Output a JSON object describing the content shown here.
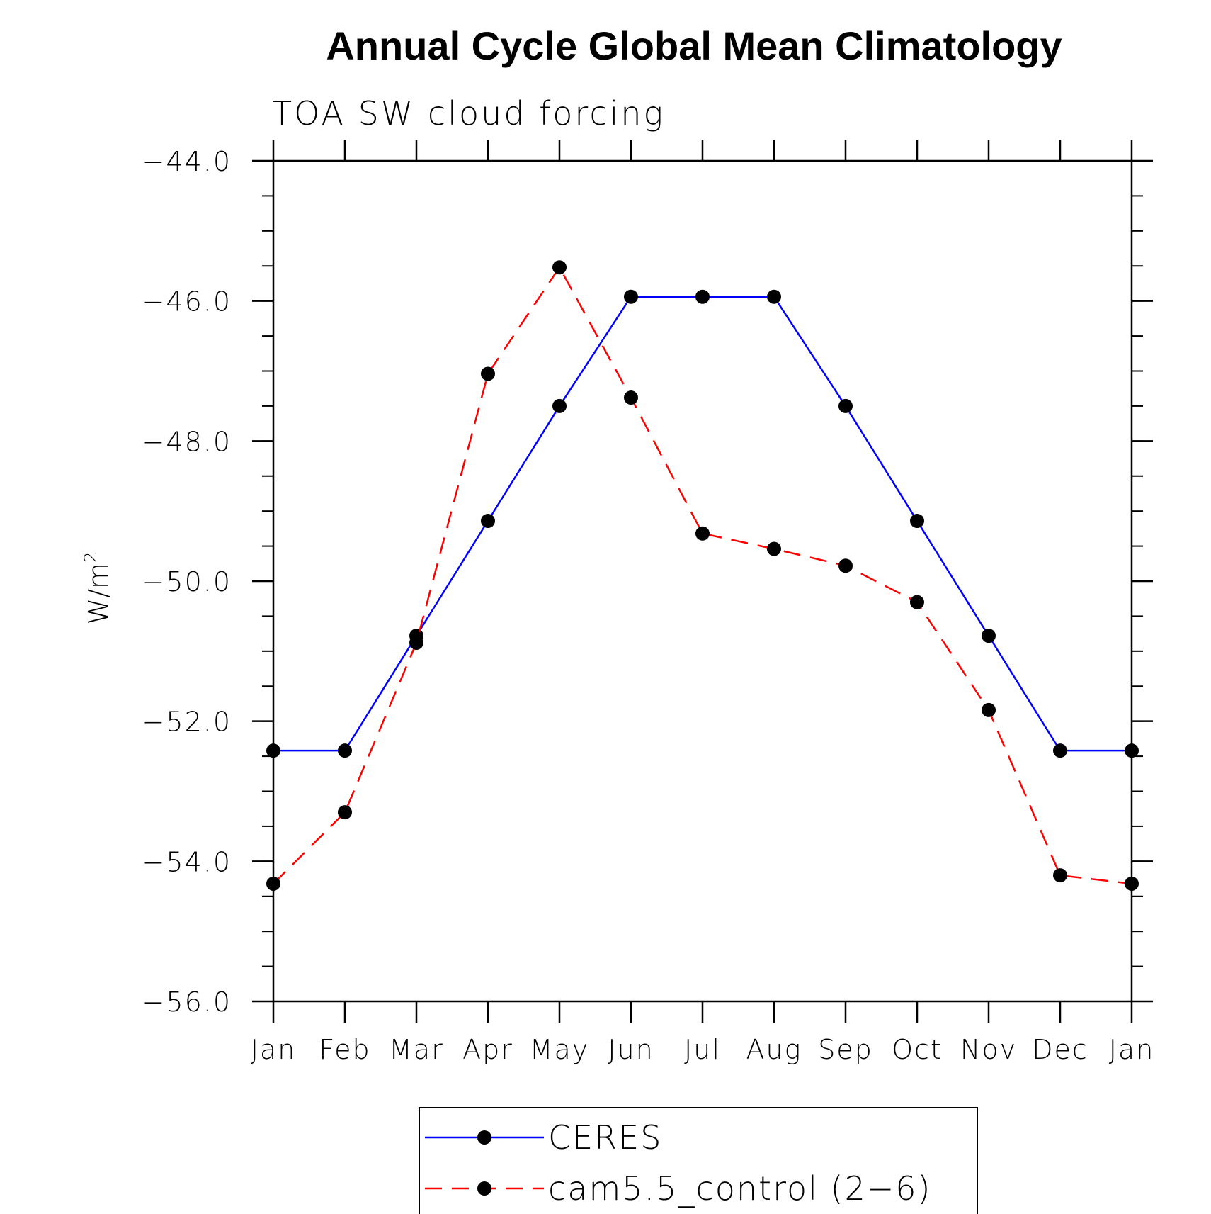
{
  "chart_data": {
    "type": "line",
    "title": "Annual Cycle Global Mean Climatology",
    "subtitle": "TOA SW cloud forcing",
    "ylabel": "W/m",
    "ylabel_superscript": "2",
    "xlabel": "",
    "categories": [
      "Jan",
      "Feb",
      "Mar",
      "Apr",
      "May",
      "Jun",
      "Jul",
      "Aug",
      "Sep",
      "Oct",
      "Nov",
      "Dec",
      "Jan"
    ],
    "ylim": [
      -56.0,
      -44.0
    ],
    "yticks": [
      -56.0,
      -54.0,
      -52.0,
      -50.0,
      -48.0,
      -46.0,
      -44.0
    ],
    "ytick_labels": [
      "−56.0",
      "−54.0",
      "−52.0",
      "−50.0",
      "−48.0",
      "−46.0",
      "−44.0"
    ],
    "yminor_step": 0.5,
    "grid": false,
    "legend_position": "bottom-center",
    "series": [
      {
        "name": "CERES",
        "color": "#0000ff",
        "dash": "solid",
        "marker": "filled-circle",
        "values": [
          -52.42,
          -52.42,
          -50.78,
          -49.14,
          -47.5,
          -45.94,
          -45.94,
          -45.94,
          -47.5,
          -49.14,
          -50.78,
          -52.42,
          -52.42
        ]
      },
      {
        "name": "cam5.5_control (2−6)",
        "color": "#ff0000",
        "dash": "dashed",
        "marker": "filled-circle",
        "values": [
          -54.32,
          -53.3,
          -50.88,
          -47.04,
          -45.52,
          -47.38,
          -49.32,
          -49.54,
          -49.78,
          -50.3,
          -51.84,
          -54.2,
          -54.32
        ]
      }
    ]
  }
}
